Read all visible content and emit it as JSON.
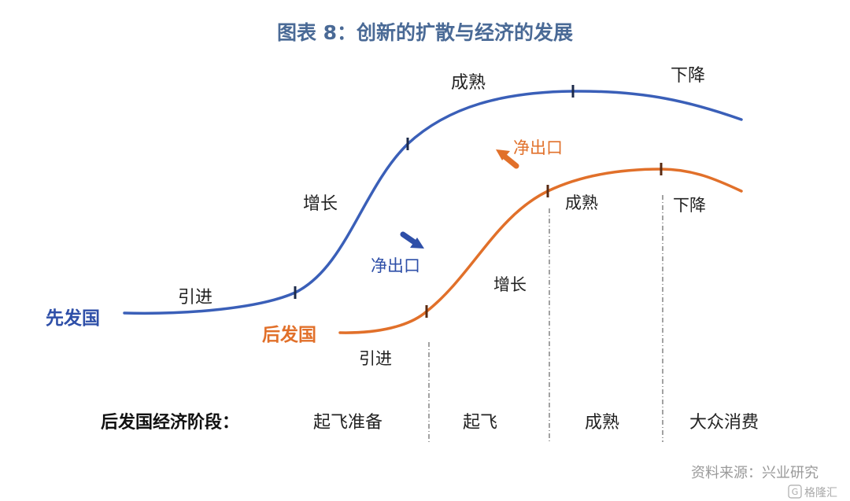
{
  "title": "图表 8：创新的扩散与经济的发展",
  "colors": {
    "leader": "#3a5fb8",
    "follower": "#e1702a",
    "title": "#4a6a96",
    "tick": "#1c2a4a"
  },
  "leader_curve": {
    "label": "先发国",
    "stages": {
      "intro": "引进",
      "growth": "增长",
      "mature": "成熟",
      "decline": "下降"
    }
  },
  "follower_curve": {
    "label": "后发国",
    "stages": {
      "intro": "引进",
      "growth": "增长",
      "mature": "成熟",
      "decline": "下降"
    }
  },
  "arrows": {
    "net_export_follower": "净出口",
    "net_export_leader": "净出口"
  },
  "phases": {
    "heading": "后发国经济阶段：",
    "items": [
      "起飞准备",
      "起飞",
      "成熟",
      "大众消费"
    ]
  },
  "source": "资料来源：兴业研究",
  "watermark": "格隆汇"
}
